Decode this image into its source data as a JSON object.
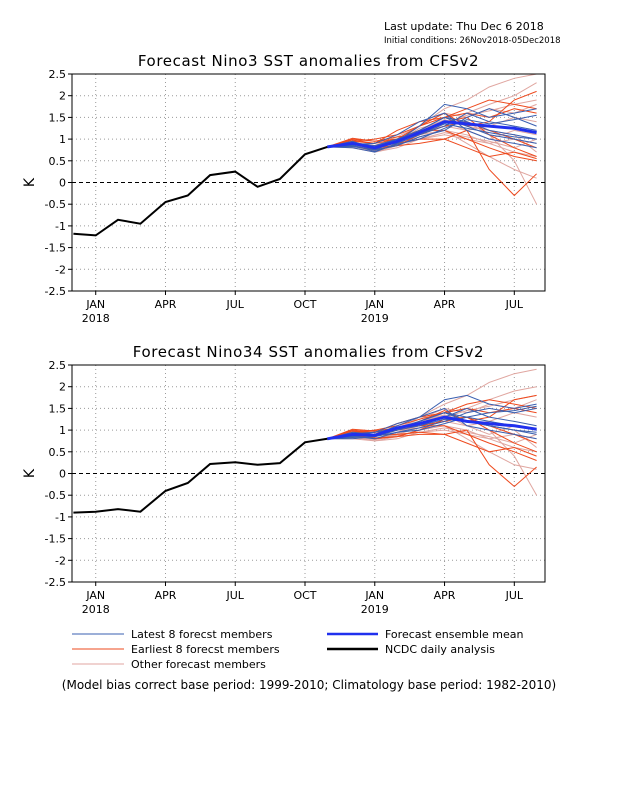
{
  "header": {
    "last_update": "Last update: Thu Dec  6 2018",
    "initial_conditions": "Initial conditions: 26Nov2018-05Dec2018"
  },
  "colors": {
    "latest": "#3a5fb0",
    "earliest": "#ee4a1e",
    "other": "#e0a6a0",
    "mean": "#2030ee",
    "analysis": "#000000",
    "grid": "#9a9a9a"
  },
  "legend": {
    "latest": "Latest 8 forecst members",
    "earliest": "Earliest 8 forecst members",
    "other": "Other forecast members",
    "mean": "Forecast ensemble mean",
    "analysis": "NCDC daily analysis"
  },
  "footnote": "(Model bias correct base period: 1999-2010; Climatology base period: 1982-2010)",
  "chart_data": [
    {
      "type": "line",
      "title": "Forecast Nino3 SST anomalies from CFSv2",
      "ylabel": "K",
      "ylim": [
        -2.5,
        2.5
      ],
      "yticks": [
        "2.5",
        "2",
        "1.5",
        "1",
        "0.5",
        "0",
        "-0.5",
        "-1",
        "-1.5",
        "-2",
        "-2.5"
      ],
      "xticks": [
        {
          "label": "JAN",
          "sub": "2018",
          "x": 2018.04
        },
        {
          "label": "APR",
          "sub": "",
          "x": 2018.29
        },
        {
          "label": "JUL",
          "sub": "",
          "x": 2018.54
        },
        {
          "label": "OCT",
          "sub": "",
          "x": 2018.79
        },
        {
          "label": "JAN",
          "sub": "2019",
          "x": 2019.04
        },
        {
          "label": "APR",
          "sub": "",
          "x": 2019.29
        },
        {
          "label": "JUL",
          "sub": "",
          "x": 2019.54
        }
      ],
      "xlim": [
        2017.955,
        2019.65
      ],
      "grid": true,
      "zero_line": "dashed",
      "analysis": {
        "x": [
          2017.96,
          2018.04,
          2018.12,
          2018.2,
          2018.29,
          2018.37,
          2018.45,
          2018.54,
          2018.62,
          2018.7,
          2018.79,
          2018.87
        ],
        "y": [
          -1.18,
          -1.22,
          -0.86,
          -0.95,
          -0.45,
          -0.3,
          0.17,
          0.25,
          -0.1,
          0.08,
          0.65,
          0.82
        ]
      },
      "forecast_x": [
        2018.87,
        2018.96,
        2019.04,
        2019.12,
        2019.2,
        2019.29,
        2019.37,
        2019.45,
        2019.54,
        2019.62
      ],
      "ensemble_mean": [
        0.82,
        0.9,
        0.8,
        0.95,
        1.15,
        1.4,
        1.35,
        1.3,
        1.25,
        1.15
      ],
      "latest_members": [
        [
          0.82,
          0.85,
          0.75,
          0.95,
          1.3,
          1.8,
          1.7,
          1.5,
          1.6,
          1.7
        ],
        [
          0.82,
          0.92,
          0.85,
          1.0,
          1.2,
          1.5,
          1.4,
          1.2,
          1.1,
          1.0
        ],
        [
          0.82,
          0.8,
          0.7,
          0.9,
          1.1,
          1.3,
          1.6,
          1.4,
          1.3,
          1.2
        ],
        [
          0.82,
          0.88,
          0.9,
          1.1,
          1.4,
          1.6,
          1.2,
          1.0,
          0.9,
          0.8
        ],
        [
          0.82,
          0.95,
          0.78,
          0.92,
          1.2,
          1.5,
          1.3,
          1.1,
          1.0,
          0.9
        ],
        [
          0.82,
          0.83,
          0.75,
          0.85,
          1.05,
          1.2,
          1.5,
          1.7,
          1.5,
          1.3
        ],
        [
          0.82,
          0.9,
          0.82,
          1.0,
          1.1,
          1.35,
          1.25,
          1.15,
          1.05,
          1.0
        ],
        [
          0.82,
          0.86,
          0.72,
          0.88,
          1.0,
          1.25,
          1.45,
          1.35,
          1.45,
          1.55
        ]
      ],
      "earliest_members": [
        [
          0.82,
          0.95,
          1.0,
          1.1,
          1.3,
          1.5,
          1.7,
          1.9,
          1.8,
          1.7
        ],
        [
          0.82,
          1.0,
          0.95,
          1.0,
          1.2,
          1.2,
          1.0,
          0.8,
          0.6,
          0.5
        ],
        [
          0.82,
          0.95,
          0.9,
          1.2,
          1.4,
          1.5,
          1.6,
          1.5,
          1.7,
          1.6
        ],
        [
          0.82,
          0.92,
          0.85,
          0.9,
          1.0,
          1.0,
          0.8,
          0.6,
          0.7,
          0.55
        ],
        [
          0.82,
          0.88,
          0.8,
          0.85,
          0.9,
          1.0,
          1.2,
          0.3,
          -0.3,
          0.2
        ],
        [
          0.82,
          1.02,
          0.95,
          1.05,
          1.1,
          1.3,
          1.4,
          1.2,
          1.0,
          0.8
        ],
        [
          0.82,
          0.9,
          0.75,
          0.85,
          1.1,
          1.4,
          1.5,
          1.1,
          0.8,
          0.6
        ],
        [
          0.82,
          0.98,
          0.9,
          1.0,
          1.3,
          1.6,
          1.3,
          1.4,
          1.9,
          2.1
        ]
      ],
      "other_members": [
        [
          0.82,
          0.85,
          0.8,
          1.0,
          1.3,
          1.7,
          1.9,
          2.2,
          2.4,
          2.5
        ],
        [
          0.82,
          0.8,
          0.7,
          0.8,
          1.0,
          1.1,
          1.0,
          0.9,
          0.7,
          0.6
        ],
        [
          0.82,
          0.88,
          0.75,
          0.9,
          1.2,
          1.5,
          1.6,
          1.8,
          2.0,
          2.3
        ],
        [
          0.82,
          0.9,
          0.85,
          1.0,
          1.1,
          1.2,
          0.9,
          0.6,
          0.3,
          0.1
        ],
        [
          0.82,
          0.82,
          0.78,
          0.95,
          1.15,
          1.3,
          1.4,
          1.1,
          0.5,
          -0.5
        ],
        [
          0.82,
          0.87,
          0.8,
          0.95,
          1.25,
          1.4,
          1.2,
          1.3,
          1.5,
          1.4
        ],
        [
          0.82,
          0.84,
          0.7,
          0.85,
          1.05,
          1.2,
          1.1,
          0.9,
          1.0,
          0.9
        ],
        [
          0.82,
          0.9,
          0.85,
          1.05,
          1.3,
          1.6,
          1.5,
          1.7,
          1.6,
          1.8
        ],
        [
          0.82,
          0.86,
          0.72,
          0.9,
          1.1,
          1.3,
          1.2,
          1.0,
          1.2,
          1.1
        ],
        [
          0.82,
          0.83,
          0.76,
          0.92,
          1.2,
          1.45,
          1.3,
          1.2,
          1.1,
          0.7
        ],
        [
          0.82,
          0.89,
          0.8,
          1.0,
          1.2,
          1.35,
          1.55,
          1.65,
          1.8,
          1.9
        ],
        [
          0.82,
          0.85,
          0.74,
          0.87,
          1.0,
          1.15,
          1.05,
          0.95,
          0.8,
          1.0
        ]
      ]
    },
    {
      "type": "line",
      "title": "Forecast Nino34 SST anomalies from CFSv2",
      "ylabel": "K",
      "ylim": [
        -2.5,
        2.5
      ],
      "yticks": [
        "2.5",
        "2",
        "1.5",
        "1",
        "0.5",
        "0",
        "-0.5",
        "-1",
        "-1.5",
        "-2",
        "-2.5"
      ],
      "xticks": [
        {
          "label": "JAN",
          "sub": "2018",
          "x": 2018.04
        },
        {
          "label": "APR",
          "sub": "",
          "x": 2018.29
        },
        {
          "label": "JUL",
          "sub": "",
          "x": 2018.54
        },
        {
          "label": "OCT",
          "sub": "",
          "x": 2018.79
        },
        {
          "label": "JAN",
          "sub": "2019",
          "x": 2019.04
        },
        {
          "label": "APR",
          "sub": "",
          "x": 2019.29
        },
        {
          "label": "JUL",
          "sub": "",
          "x": 2019.54
        }
      ],
      "xlim": [
        2017.955,
        2019.65
      ],
      "grid": true,
      "zero_line": "dashed",
      "analysis": {
        "x": [
          2017.96,
          2018.04,
          2018.12,
          2018.2,
          2018.29,
          2018.37,
          2018.45,
          2018.54,
          2018.62,
          2018.7,
          2018.79,
          2018.87
        ],
        "y": [
          -0.9,
          -0.88,
          -0.82,
          -0.88,
          -0.4,
          -0.22,
          0.22,
          0.26,
          0.2,
          0.24,
          0.72,
          0.8
        ]
      },
      "forecast_x": [
        2018.87,
        2018.96,
        2019.04,
        2019.12,
        2019.2,
        2019.29,
        2019.37,
        2019.45,
        2019.54,
        2019.62
      ],
      "ensemble_mean": [
        0.8,
        0.9,
        0.88,
        1.05,
        1.15,
        1.3,
        1.2,
        1.15,
        1.1,
        1.02
      ],
      "latest_members": [
        [
          0.8,
          0.85,
          0.9,
          1.1,
          1.3,
          1.7,
          1.8,
          1.6,
          1.5,
          1.6
        ],
        [
          0.8,
          0.92,
          0.95,
          1.05,
          1.2,
          1.4,
          1.2,
          1.1,
          1.0,
          0.9
        ],
        [
          0.8,
          0.8,
          0.85,
          1.0,
          1.1,
          1.3,
          1.5,
          1.3,
          1.2,
          1.1
        ],
        [
          0.8,
          0.88,
          0.95,
          1.15,
          1.3,
          1.5,
          1.1,
          1.0,
          0.9,
          0.8
        ],
        [
          0.8,
          0.95,
          0.9,
          1.0,
          1.2,
          1.4,
          1.3,
          1.2,
          1.1,
          1.0
        ],
        [
          0.8,
          0.83,
          0.85,
          0.95,
          1.05,
          1.2,
          1.4,
          1.5,
          1.4,
          1.5
        ],
        [
          0.8,
          0.9,
          0.88,
          1.05,
          1.1,
          1.25,
          1.2,
          1.1,
          1.0,
          0.95
        ],
        [
          0.8,
          0.86,
          0.8,
          0.95,
          1.0,
          1.15,
          1.3,
          1.4,
          1.45,
          1.55
        ]
      ],
      "earliest_members": [
        [
          0.8,
          0.95,
          1.0,
          1.1,
          1.25,
          1.4,
          1.6,
          1.7,
          1.6,
          1.5
        ],
        [
          0.8,
          1.0,
          0.95,
          1.0,
          1.1,
          1.1,
          0.9,
          0.7,
          0.5,
          0.3
        ],
        [
          0.8,
          0.95,
          0.95,
          1.15,
          1.3,
          1.4,
          1.5,
          1.4,
          1.5,
          1.4
        ],
        [
          0.8,
          0.92,
          0.88,
          0.9,
          0.95,
          0.9,
          0.7,
          0.5,
          0.6,
          0.4
        ],
        [
          0.8,
          0.88,
          0.82,
          0.85,
          0.9,
          0.9,
          1.0,
          0.2,
          -0.3,
          0.15
        ],
        [
          0.8,
          1.02,
          0.98,
          1.05,
          1.1,
          1.2,
          1.3,
          1.1,
          0.9,
          0.7
        ],
        [
          0.8,
          0.9,
          0.8,
          0.85,
          1.0,
          1.25,
          1.3,
          1.0,
          0.7,
          0.5
        ],
        [
          0.8,
          0.98,
          0.95,
          1.0,
          1.2,
          1.45,
          1.2,
          1.3,
          1.7,
          1.8
        ]
      ],
      "other_members": [
        [
          0.8,
          0.85,
          0.85,
          1.0,
          1.3,
          1.6,
          1.8,
          2.1,
          2.3,
          2.4
        ],
        [
          0.8,
          0.8,
          0.75,
          0.8,
          0.95,
          1.0,
          0.9,
          0.8,
          0.6,
          0.5
        ],
        [
          0.8,
          0.88,
          0.8,
          0.95,
          1.15,
          1.4,
          1.5,
          1.7,
          1.9,
          2.0
        ],
        [
          0.8,
          0.9,
          0.9,
          1.0,
          1.05,
          1.1,
          0.8,
          0.5,
          0.2,
          0.1
        ],
        [
          0.8,
          0.82,
          0.8,
          0.95,
          1.1,
          1.2,
          1.3,
          1.0,
          0.4,
          -0.5
        ],
        [
          0.8,
          0.87,
          0.85,
          1.0,
          1.2,
          1.35,
          1.1,
          1.2,
          1.4,
          1.3
        ],
        [
          0.8,
          0.84,
          0.75,
          0.85,
          1.0,
          1.1,
          1.0,
          0.8,
          0.9,
          0.8
        ],
        [
          0.8,
          0.9,
          0.9,
          1.05,
          1.25,
          1.5,
          1.4,
          1.6,
          1.5,
          1.7
        ],
        [
          0.8,
          0.86,
          0.78,
          0.9,
          1.05,
          1.2,
          1.1,
          0.9,
          1.1,
          1.0
        ],
        [
          0.8,
          0.83,
          0.8,
          0.92,
          1.15,
          1.35,
          1.2,
          1.1,
          1.0,
          0.6
        ],
        [
          0.8,
          0.89,
          0.85,
          1.0,
          1.15,
          1.3,
          1.45,
          1.55,
          1.7,
          1.8
        ],
        [
          0.8,
          0.85,
          0.78,
          0.88,
          0.95,
          1.05,
          0.95,
          0.85,
          0.7,
          0.9
        ]
      ]
    }
  ]
}
